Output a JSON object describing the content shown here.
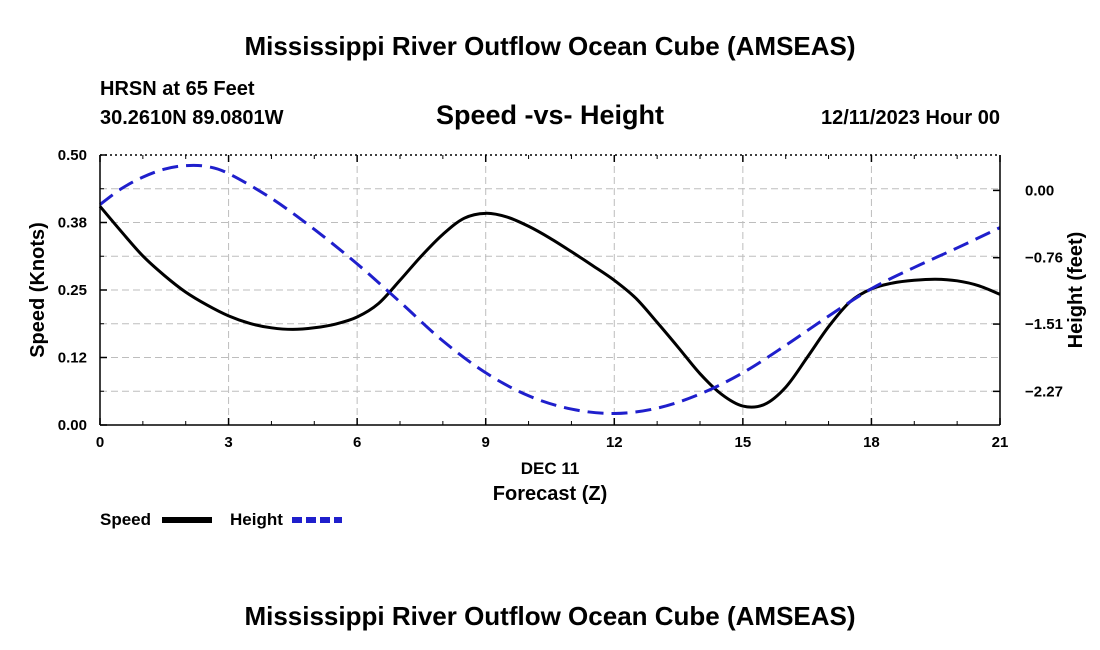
{
  "page": {
    "title": "Mississippi River Outflow Ocean Cube (AMSEAS)",
    "footer_title": "Mississippi River Outflow Ocean Cube (AMSEAS)",
    "station": "HRSN at 65 Feet",
    "coords": "30.2610N  89.0801W",
    "subtitle": "Speed -vs- Height",
    "datetime": "12/11/2023 Hour 00"
  },
  "legend": {
    "speed_label": "Speed",
    "height_label": "Height"
  },
  "colors": {
    "speed": "#000000",
    "height": "#1f1fcc",
    "grid": "#bdbdbd"
  },
  "chart_data": {
    "type": "line",
    "title": "Speed -vs- Height",
    "xlabel": "Forecast (Z)",
    "xsublabel": "DEC 11",
    "ylabel": "Speed (Knots)",
    "y2label": "Height (feet)",
    "xlim": [
      0,
      21
    ],
    "ylim": [
      0,
      0.5
    ],
    "y2lim": [
      -2.65,
      0.4
    ],
    "x_ticks": [
      0,
      3,
      6,
      9,
      12,
      15,
      18,
      21
    ],
    "x_tick_labels": [
      "0",
      "3",
      "6",
      "9",
      "12",
      "15",
      "18",
      "21"
    ],
    "y_ticks": [
      0,
      0.125,
      0.25,
      0.375,
      0.5
    ],
    "y_tick_labels": [
      "0.00",
      "0.12",
      "0.25",
      "0.38",
      "0.50"
    ],
    "y2_ticks": [
      0.0,
      -0.76,
      -1.51,
      -2.27
    ],
    "y2_tick_labels": [
      "0.00",
      "-0.76",
      "-1.51",
      "-2.27"
    ],
    "grid": true,
    "series": [
      {
        "name": "Speed",
        "axis": "left",
        "style": "solid",
        "x": [
          0,
          0.5,
          1,
          1.5,
          2,
          2.5,
          3,
          3.5,
          4,
          4.5,
          5,
          5.5,
          6,
          6.5,
          7,
          7.5,
          8,
          8.5,
          9,
          9.5,
          10,
          10.5,
          11,
          11.5,
          12,
          12.5,
          13,
          13.5,
          14,
          14.5,
          15,
          15.5,
          16,
          16.5,
          17,
          17.5,
          18,
          18.5,
          19,
          19.5,
          20,
          20.5,
          21
        ],
        "values": [
          0.405,
          0.358,
          0.313,
          0.277,
          0.246,
          0.222,
          0.202,
          0.188,
          0.18,
          0.177,
          0.18,
          0.187,
          0.2,
          0.225,
          0.268,
          0.313,
          0.353,
          0.383,
          0.392,
          0.385,
          0.368,
          0.346,
          0.321,
          0.295,
          0.268,
          0.235,
          0.19,
          0.143,
          0.095,
          0.057,
          0.035,
          0.038,
          0.07,
          0.125,
          0.182,
          0.228,
          0.252,
          0.263,
          0.268,
          0.27,
          0.267,
          0.258,
          0.242
        ]
      },
      {
        "name": "Height",
        "axis": "right",
        "style": "dashed",
        "x": [
          0,
          0.5,
          1,
          1.5,
          2,
          2.5,
          3,
          4,
          5,
          6,
          7,
          8,
          9,
          10,
          11,
          12,
          13,
          14,
          15,
          16,
          17,
          18,
          19,
          20,
          21
        ],
        "values": [
          -0.16,
          0.02,
          0.15,
          0.24,
          0.28,
          0.27,
          0.19,
          -0.09,
          -0.44,
          -0.83,
          -1.26,
          -1.7,
          -2.06,
          -2.32,
          -2.47,
          -2.52,
          -2.46,
          -2.3,
          -2.06,
          -1.75,
          -1.42,
          -1.11,
          -0.87,
          -0.65,
          -0.42
        ]
      }
    ]
  }
}
